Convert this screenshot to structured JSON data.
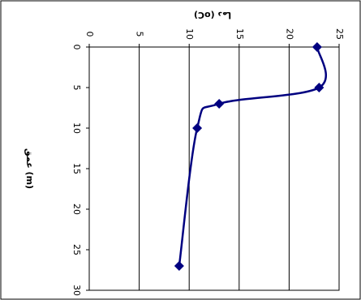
{
  "chart_data": {
    "type": "line",
    "title": "دما (oC)",
    "x_label": "عمق (m)",
    "x": [
      0,
      5,
      7,
      10,
      27
    ],
    "series": [
      {
        "color": "#000080",
        "values": [
          22.8,
          23,
          13,
          10.8,
          9
        ]
      }
    ],
    "xlim": [
      0,
      30
    ],
    "xticks": [
      0,
      5,
      10,
      15,
      20,
      25,
      30
    ],
    "ylim": [
      0,
      25
    ],
    "yticks": [
      0,
      5,
      10,
      15,
      20,
      25
    ],
    "grid": true
  }
}
